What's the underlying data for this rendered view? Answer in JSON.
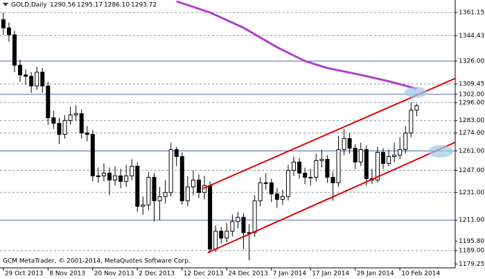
{
  "chart_data": {
    "type": "candlestick",
    "title": "GOLD,Daily",
    "header_ohlc": [
      "1290.56",
      "1295.17",
      "1286.10",
      "1293.72"
    ],
    "footer": "GCM MetaTrader, © 2001-2014, MetaQuotes Software Corp.",
    "open": [
      1356,
      1350,
      1345,
      1323,
      1316,
      1315,
      1308,
      1318,
      1308,
      1285,
      1281,
      1273,
      1283,
      1287,
      1288,
      1274,
      1273,
      1243,
      1243,
      1245,
      1240,
      1243,
      1239,
      1243,
      1250,
      1221,
      1222,
      1242,
      1225,
      1228,
      1231,
      1262,
      1257,
      1225,
      1235,
      1240,
      1231,
      1236,
      1190,
      1203,
      1198,
      1203,
      1210,
      1213,
      1202,
      1202,
      1225,
      1238,
      1238,
      1230,
      1226,
      1228,
      1247,
      1253,
      1245,
      1242,
      1242,
      1254,
      1255,
      1242,
      1238,
      1262,
      1270,
      1263,
      1253,
      1262,
      1241,
      1240,
      1260,
      1252,
      1257,
      1258,
      1262,
      1274,
      1290.56
    ],
    "high": [
      1361,
      1354,
      1348,
      1327,
      1320,
      1318,
      1322,
      1321,
      1311,
      1290,
      1285,
      1287,
      1293,
      1294,
      1291,
      1279,
      1276,
      1249,
      1252,
      1249,
      1250,
      1248,
      1251,
      1255,
      1253,
      1228,
      1246,
      1245,
      1235,
      1240,
      1267,
      1264,
      1260,
      1243,
      1247,
      1244,
      1243,
      1239,
      1207,
      1206,
      1209,
      1215,
      1217,
      1216,
      1208,
      1229,
      1242,
      1245,
      1241,
      1234,
      1233,
      1251,
      1257,
      1256,
      1249,
      1248,
      1259,
      1262,
      1258,
      1246,
      1272,
      1277,
      1274,
      1266,
      1267,
      1265,
      1248,
      1264,
      1263,
      1262,
      1267,
      1271,
      1279,
      1296,
      1295.17
    ],
    "low": [
      1345,
      1340,
      1318,
      1311,
      1309,
      1303,
      1305,
      1303,
      1280,
      1277,
      1266,
      1270,
      1280,
      1283,
      1270,
      1268,
      1239,
      1238,
      1239,
      1229,
      1236,
      1234,
      1235,
      1240,
      1217,
      1215,
      1218,
      1210,
      1211,
      1223,
      1228,
      1250,
      1222,
      1221,
      1229,
      1227,
      1226,
      1187,
      1188,
      1194,
      1195,
      1199,
      1205,
      1190,
      1182,
      1199,
      1221,
      1233,
      1224,
      1220,
      1222,
      1225,
      1243,
      1241,
      1237,
      1236,
      1239,
      1249,
      1238,
      1225,
      1235,
      1258,
      1259,
      1248,
      1250,
      1236,
      1237,
      1238,
      1248,
      1250,
      1253,
      1255,
      1259,
      1271,
      1286.1
    ],
    "close": [
      1350,
      1345,
      1323,
      1316,
      1315,
      1308,
      1318,
      1308,
      1285,
      1281,
      1273,
      1283,
      1287,
      1288,
      1274,
      1273,
      1243,
      1243,
      1245,
      1240,
      1243,
      1239,
      1243,
      1250,
      1221,
      1222,
      1242,
      1225,
      1228,
      1231,
      1262,
      1257,
      1225,
      1235,
      1240,
      1231,
      1236,
      1190,
      1203,
      1198,
      1203,
      1210,
      1213,
      1202,
      1202,
      1225,
      1238,
      1238,
      1230,
      1226,
      1228,
      1247,
      1253,
      1245,
      1242,
      1242,
      1254,
      1255,
      1242,
      1238,
      1262,
      1270,
      1263,
      1253,
      1262,
      1241,
      1240,
      1260,
      1252,
      1257,
      1258,
      1262,
      1274,
      1290.56,
      1293.72
    ],
    "moving_average": {
      "color": "#b040c8",
      "x": [
        31,
        37,
        43,
        49,
        54,
        58,
        64,
        69,
        74
      ],
      "values": [
        1369.2,
        1361.15,
        1350.1,
        1336.0,
        1326.0,
        1321.0,
        1316.0,
        1311.4,
        1306.0
      ]
    },
    "trendlines": [
      {
        "color": "#e00000",
        "x": [
          35.6,
          80.9
        ],
        "values": [
          1233.6,
          1313.5
        ]
      },
      {
        "color": "#e00000",
        "x": [
          36.6,
          80.9
        ],
        "values": [
          1187.5,
          1267.3
        ]
      }
    ],
    "xlim": [
      -0.6,
      80.9
    ],
    "ylim": [
      1176.45,
      1370.18
    ],
    "xticks": [
      {
        "value": 0,
        "label": "29 Oct 2013"
      },
      {
        "value": 8,
        "label": "8 Nov 2013"
      },
      {
        "value": 16,
        "label": "20 Nov 2013"
      },
      {
        "value": 24,
        "label": "2 Dec 2013"
      },
      {
        "value": 32,
        "label": "12 Dec 2013"
      },
      {
        "value": 40,
        "label": "24 Dec 2013"
      },
      {
        "value": 48,
        "label": "7 Jan 2014"
      },
      {
        "value": 55,
        "label": "17 Jan 2014"
      },
      {
        "value": 63,
        "label": "29 Jan 2014"
      },
      {
        "value": 71,
        "label": "10 Feb 2014"
      }
    ],
    "yticks": [
      {
        "value": 1361.15,
        "label": "1361.15",
        "line": "dashed"
      },
      {
        "value": 1344.43,
        "label": "1344.43",
        "line": "dashed"
      },
      {
        "value": 1326,
        "label": "1326.00",
        "line": "solid"
      },
      {
        "value": 1309.45,
        "label": "1309.45",
        "line": "dashed"
      },
      {
        "value": 1302,
        "label": "1302.00",
        "line": "solid"
      },
      {
        "value": 1296,
        "label": "1296.00",
        "line": "dashed"
      },
      {
        "value": 1283,
        "label": "1283.00",
        "line": "dashed"
      },
      {
        "value": 1274,
        "label": "1274.00",
        "line": "dashed"
      },
      {
        "value": 1261,
        "label": "1261.00",
        "line": "solid"
      },
      {
        "value": 1247,
        "label": "1247.00",
        "line": "dashed"
      },
      {
        "value": 1231,
        "label": "1231.00",
        "line": "dashed"
      },
      {
        "value": 1211,
        "label": "1211.00",
        "line": "solid"
      },
      {
        "value": 1195.8,
        "label": "1195.80",
        "line": "none"
      },
      {
        "value": 1189,
        "label": "1189.00",
        "line": "dashed"
      },
      {
        "value": 1179.25,
        "label": "1179.25",
        "line": "none"
      }
    ],
    "grid_color": "#7d8fa8",
    "level_color": "#4a6aa8"
  }
}
